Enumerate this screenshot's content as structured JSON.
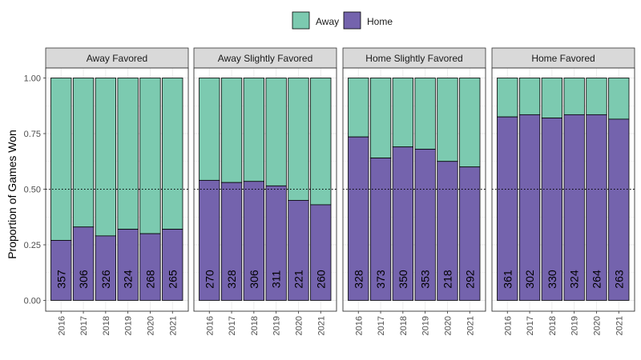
{
  "chart_data": {
    "type": "bar",
    "stacked": true,
    "ylabel": "Proportion of Games Won",
    "xlabel": "",
    "ylim": [
      0,
      1
    ],
    "y_ticks": [
      "0.00",
      "0.25",
      "0.50",
      "0.75",
      "1.00"
    ],
    "y_tick_values": [
      0,
      0.25,
      0.5,
      0.75,
      1
    ],
    "reference_line": 0.5,
    "grid": true,
    "legend": {
      "placement": "top-center",
      "entries": [
        {
          "name": "Away",
          "color": "#7ccab0"
        },
        {
          "name": "Home",
          "color": "#7463ad"
        }
      ]
    },
    "categories": [
      "2016",
      "2017",
      "2018",
      "2019",
      "2020",
      "2021"
    ],
    "panels": [
      {
        "title": "Away Favored",
        "home_share": [
          0.27,
          0.33,
          0.29,
          0.32,
          0.3,
          0.32
        ],
        "counts": [
          "357",
          "306",
          "326",
          "324",
          "268",
          "265"
        ]
      },
      {
        "title": "Away Slightly Favored",
        "home_share": [
          0.54,
          0.53,
          0.535,
          0.515,
          0.45,
          0.43
        ],
        "counts": [
          "270",
          "328",
          "306",
          "311",
          "221",
          "260"
        ]
      },
      {
        "title": "Home Slightly Favored",
        "home_share": [
          0.735,
          0.64,
          0.69,
          0.68,
          0.625,
          0.6
        ],
        "counts": [
          "328",
          "373",
          "350",
          "353",
          "218",
          "292"
        ]
      },
      {
        "title": "Home Favored",
        "home_share": [
          0.825,
          0.835,
          0.82,
          0.835,
          0.835,
          0.815
        ],
        "counts": [
          "361",
          "302",
          "330",
          "324",
          "264",
          "263"
        ]
      }
    ]
  }
}
